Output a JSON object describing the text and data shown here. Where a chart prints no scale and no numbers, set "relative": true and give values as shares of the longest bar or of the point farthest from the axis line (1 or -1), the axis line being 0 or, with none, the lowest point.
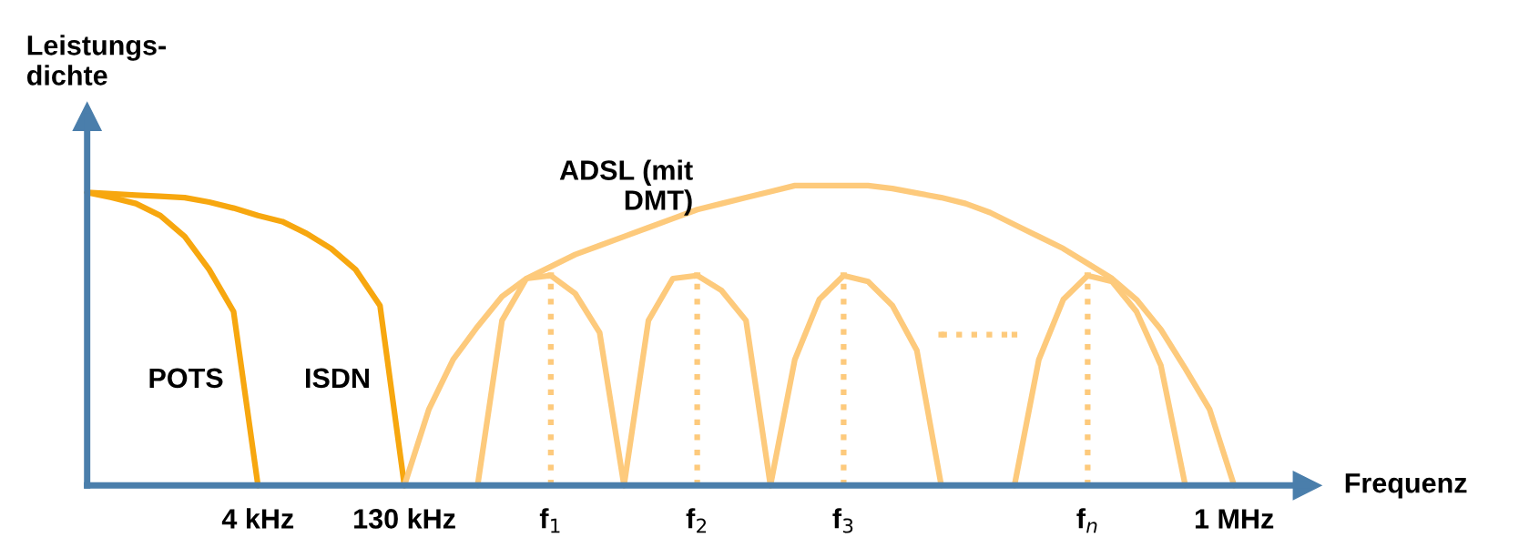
{
  "chart_data": {
    "type": "line",
    "relative": true,
    "xlabel": "Frequenz",
    "ylabel": "Leistungs-\ndichte",
    "categories": [
      null,
      null,
      null,
      null,
      null,
      null,
      null,
      "4 kHz",
      null,
      null,
      null,
      null,
      null,
      "130 kHz",
      null,
      null,
      null,
      null,
      null,
      "f$_{1}$",
      null,
      null,
      null,
      null,
      null,
      "f$_{2}$",
      null,
      null,
      null,
      null,
      null,
      "f$_{3}$",
      null,
      null,
      null,
      null,
      null,
      null,
      null,
      null,
      null,
      "f$_{n}$",
      null,
      null,
      null,
      null,
      null,
      "1 MHz",
      null,
      null,
      null
    ],
    "series": [
      {
        "name": "POTS",
        "color": "#f7a70f",
        "line_style": "solid",
        "values": [
          0.977,
          0.96,
          0.94,
          0.9,
          0.83,
          0.72,
          0.58,
          0,
          null,
          null,
          null,
          null,
          null,
          null,
          null,
          null,
          null,
          null,
          null,
          null,
          null,
          null,
          null,
          null,
          null,
          null,
          null,
          null,
          null,
          null,
          null,
          null,
          null,
          null,
          null,
          null,
          null,
          null,
          null,
          null,
          null,
          null,
          null,
          null,
          null,
          null,
          null,
          null,
          null,
          null,
          null
        ]
      },
      {
        "name": "ISDN",
        "color": "#f7a70f",
        "line_style": "solid",
        "values": [
          0.977,
          0.973,
          0.968,
          0.964,
          0.96,
          0.945,
          0.925,
          0.9,
          0.88,
          0.84,
          0.79,
          0.72,
          0.6,
          0,
          null,
          null,
          null,
          null,
          null,
          null,
          null,
          null,
          null,
          null,
          null,
          null,
          null,
          null,
          null,
          null,
          null,
          null,
          null,
          null,
          null,
          null,
          null,
          null,
          null,
          null,
          null,
          null,
          null,
          null,
          null,
          null,
          null,
          null,
          null,
          null,
          null
        ]
      },
      {
        "name": "ADSL (mit\nDMT)",
        "color": "#fdca7c",
        "line_style": "solid",
        "values": [
          null,
          null,
          null,
          null,
          null,
          null,
          null,
          null,
          null,
          null,
          null,
          null,
          null,
          0,
          0.253,
          0.42,
          0.53,
          0.63,
          0.69,
          0.73,
          0.77,
          0.8,
          0.83,
          0.86,
          0.89,
          0.92,
          0.94,
          0.96,
          0.98,
          1,
          1,
          1,
          1,
          0.99,
          0.975,
          0.96,
          0.94,
          0.91,
          0.87,
          0.83,
          0.79,
          0.74,
          0.69,
          0.62,
          0.52,
          0.39,
          0.253,
          0,
          null,
          null,
          null
        ]
      },
      {
        "color": "#fdca7c",
        "line_style": "solid",
        "values": [
          null,
          null,
          null,
          null,
          null,
          null,
          null,
          null,
          null,
          null,
          null,
          null,
          null,
          null,
          null,
          null,
          0,
          0.55,
          0.69,
          0.7,
          0.64,
          0.51,
          0,
          null,
          null,
          null,
          null,
          null,
          null,
          null,
          null,
          null,
          null,
          null,
          null,
          null,
          null,
          null,
          null,
          null,
          null,
          null,
          null,
          null,
          null,
          null,
          null,
          null,
          null,
          null,
          null
        ]
      },
      {
        "color": "#fdca7c",
        "line_style": "solid",
        "values": [
          null,
          null,
          null,
          null,
          null,
          null,
          null,
          null,
          null,
          null,
          null,
          null,
          null,
          null,
          null,
          null,
          null,
          null,
          null,
          null,
          null,
          null,
          0,
          0.55,
          0.69,
          0.7,
          0.65,
          0.55,
          0,
          null,
          null,
          null,
          null,
          null,
          null,
          null,
          null,
          null,
          null,
          null,
          null,
          null,
          null,
          null,
          null,
          null,
          null,
          null,
          null,
          null,
          null
        ]
      },
      {
        "color": "#fdca7c",
        "line_style": "solid",
        "values": [
          null,
          null,
          null,
          null,
          null,
          null,
          null,
          null,
          null,
          null,
          null,
          null,
          null,
          null,
          null,
          null,
          null,
          null,
          null,
          null,
          null,
          null,
          null,
          null,
          null,
          null,
          null,
          null,
          0,
          0.42,
          0.62,
          0.7,
          0.68,
          0.6,
          0.45,
          0,
          null,
          null,
          null,
          null,
          null,
          null,
          null,
          null,
          null,
          null,
          null,
          null,
          null,
          null,
          null
        ]
      },
      {
        "color": "#fdca7c",
        "line_style": "solid",
        "values": [
          null,
          null,
          null,
          null,
          null,
          null,
          null,
          null,
          null,
          null,
          null,
          null,
          null,
          null,
          null,
          null,
          null,
          null,
          null,
          null,
          null,
          null,
          null,
          null,
          null,
          null,
          null,
          null,
          null,
          null,
          null,
          null,
          null,
          null,
          null,
          null,
          null,
          null,
          0,
          0.42,
          0.62,
          0.7,
          0.68,
          0.58,
          0.4,
          0,
          null,
          null,
          null,
          null,
          null
        ]
      },
      {
        "type": "lollipop",
        "marker": "square",
        "color": "#fdca7c",
        "line_style": "dotted",
        "values": [
          null,
          null,
          null,
          null,
          null,
          null,
          null,
          null,
          null,
          null,
          null,
          null,
          null,
          null,
          null,
          null,
          null,
          null,
          null,
          0.7,
          null,
          null,
          null,
          null,
          null,
          0.7,
          null,
          null,
          null,
          null,
          null,
          0.7,
          null,
          null,
          null,
          null,
          null,
          null,
          null,
          null,
          null,
          0.7,
          null,
          null,
          null,
          null,
          null,
          null,
          null,
          null,
          null
        ]
      },
      {
        "color": "#fdca7c",
        "line_style": "dotted",
        "values": [
          null,
          null,
          null,
          null,
          null,
          null,
          null,
          null,
          null,
          null,
          null,
          null,
          null,
          null,
          null,
          null,
          null,
          null,
          null,
          null,
          null,
          null,
          null,
          null,
          null,
          null,
          null,
          null,
          null,
          null,
          null,
          null,
          null,
          null,
          null,
          0.503,
          0.503,
          0.503,
          0.503,
          null,
          null,
          null,
          null,
          null,
          null,
          null,
          null,
          null,
          null,
          null,
          null
        ]
      }
    ]
  }
}
